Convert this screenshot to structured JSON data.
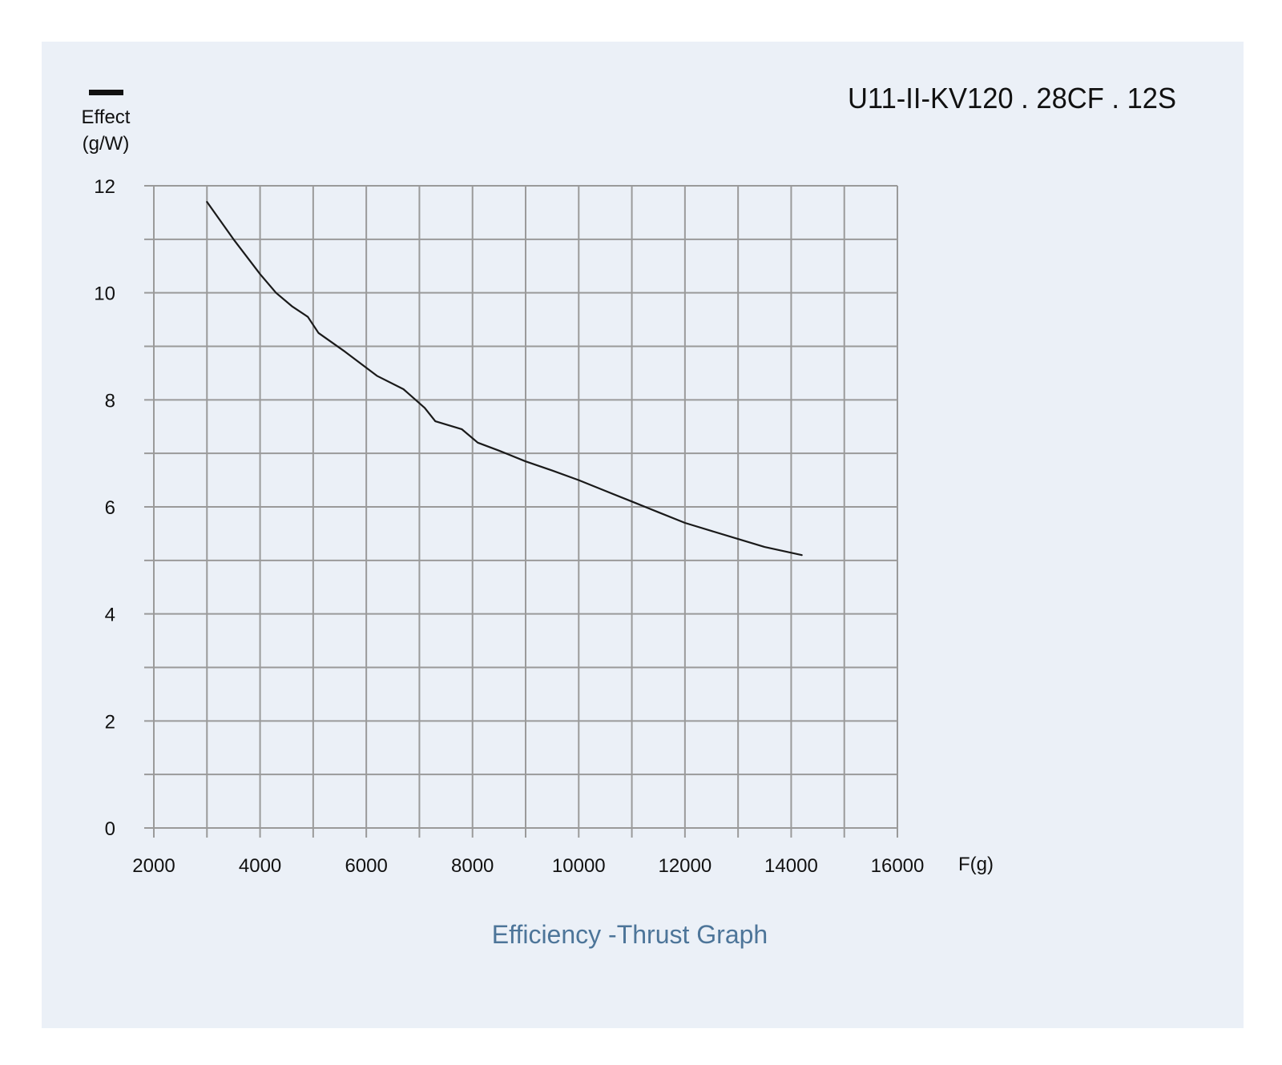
{
  "colors": {
    "panel_background": "#ebf0f7",
    "grid": "#9a9a9a",
    "curve": "#1a1a1a",
    "caption": "#4d7599",
    "text": "#111111"
  },
  "chart_data": {
    "type": "line",
    "title": "U11-II-KV120 . 28CF . 12S",
    "caption": "Efficiency -Thrust Graph",
    "ylabel_line1": "Effect",
    "ylabel_line2": "(g/W)",
    "xlabel": "F(g)",
    "xlim": [
      2000,
      16000
    ],
    "ylim": [
      0,
      12
    ],
    "x_ticks": [
      "2000",
      "4000",
      "6000",
      "8000",
      "10000",
      "12000",
      "14000",
      "16000"
    ],
    "y_ticks": [
      "0",
      "2",
      "4",
      "6",
      "8",
      "10",
      "12"
    ],
    "grid": true,
    "legend": "top-left",
    "series": [
      {
        "points": [
          [
            3000,
            11.7
          ],
          [
            3500,
            11.0
          ],
          [
            4000,
            10.35
          ],
          [
            4300,
            10.0
          ],
          [
            4600,
            9.75
          ],
          [
            4900,
            9.55
          ],
          [
            5100,
            9.25
          ],
          [
            5600,
            8.9
          ],
          [
            6200,
            8.45
          ],
          [
            6700,
            8.2
          ],
          [
            7100,
            7.85
          ],
          [
            7300,
            7.6
          ],
          [
            7800,
            7.45
          ],
          [
            8100,
            7.2
          ],
          [
            8500,
            7.05
          ],
          [
            9000,
            6.85
          ],
          [
            9500,
            6.68
          ],
          [
            10000,
            6.5
          ],
          [
            10500,
            6.3
          ],
          [
            11000,
            6.1
          ],
          [
            11500,
            5.9
          ],
          [
            12000,
            5.7
          ],
          [
            12500,
            5.55
          ],
          [
            13000,
            5.4
          ],
          [
            13500,
            5.25
          ],
          [
            14200,
            5.1
          ]
        ]
      }
    ]
  }
}
